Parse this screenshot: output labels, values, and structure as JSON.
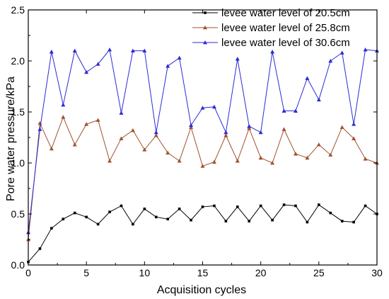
{
  "chart_data": {
    "type": "line",
    "xlabel": "Acquisition cycles",
    "ylabel": "Pore water pressure/kPa",
    "xlim": [
      0,
      30
    ],
    "ylim": [
      0,
      2.5
    ],
    "xticks": [
      0,
      5,
      10,
      15,
      20,
      25,
      30
    ],
    "yticks": [
      0.0,
      0.5,
      1.0,
      1.5,
      2.0,
      2.5
    ],
    "ytick_labels": [
      "0.0",
      "0.5",
      "1.0",
      "1.5",
      "2.0",
      "2.5"
    ],
    "grid": false,
    "legend_position": "top-right",
    "x": [
      0,
      1,
      2,
      3,
      4,
      5,
      6,
      7,
      8,
      9,
      10,
      11,
      12,
      13,
      14,
      15,
      16,
      17,
      18,
      19,
      20,
      21,
      22,
      23,
      24,
      25,
      26,
      27,
      28,
      29,
      30
    ],
    "series": [
      {
        "name": "levee water level of 20.5cm",
        "color": "#000000",
        "marker": "square",
        "values": [
          0.03,
          0.16,
          0.36,
          0.45,
          0.51,
          0.47,
          0.4,
          0.52,
          0.58,
          0.4,
          0.55,
          0.47,
          0.45,
          0.55,
          0.44,
          0.57,
          0.58,
          0.43,
          0.57,
          0.43,
          0.58,
          0.44,
          0.59,
          0.58,
          0.42,
          0.59,
          0.51,
          0.43,
          0.42,
          0.58,
          0.5
        ]
      },
      {
        "name": "levee water level of 25.8cm",
        "color": "#a0522d",
        "marker": "triangle",
        "values": [
          0.25,
          1.39,
          1.14,
          1.45,
          1.18,
          1.38,
          1.42,
          1.02,
          1.24,
          1.32,
          1.13,
          1.27,
          1.1,
          1.02,
          1.35,
          0.97,
          1.01,
          1.27,
          1.02,
          1.34,
          1.05,
          1.0,
          1.33,
          1.09,
          1.05,
          1.18,
          1.08,
          1.35,
          1.24,
          1.04,
          1.0
        ]
      },
      {
        "name": "levee water level of 30.6cm",
        "color": "#2b2bd6",
        "marker": "triangle",
        "values": [
          0.32,
          1.33,
          2.09,
          1.57,
          2.1,
          1.89,
          1.97,
          2.11,
          1.49,
          2.1,
          2.1,
          1.3,
          1.95,
          2.03,
          1.37,
          1.54,
          1.55,
          1.3,
          2.02,
          1.36,
          1.3,
          2.09,
          1.51,
          1.51,
          1.83,
          1.62,
          2.0,
          2.08,
          1.38,
          2.11,
          2.1
        ]
      }
    ]
  }
}
